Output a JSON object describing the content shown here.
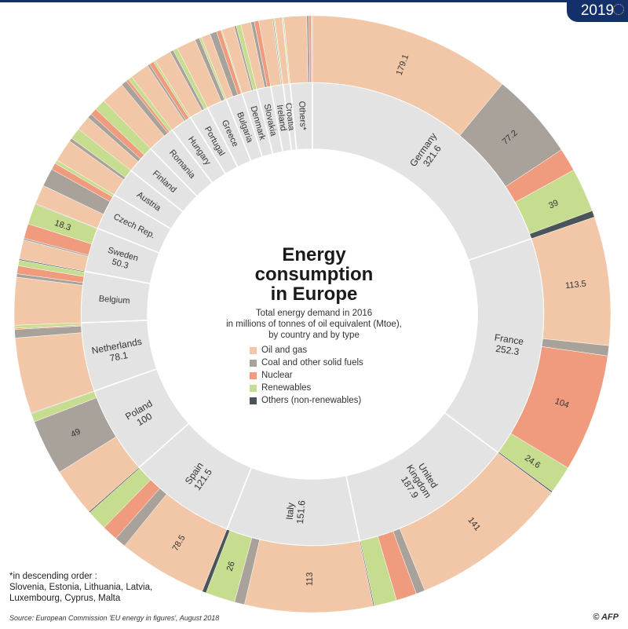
{
  "badge": {
    "year": "2019"
  },
  "title_lines": [
    "Energy",
    "consumption",
    "in Europe"
  ],
  "subtitle_lines": [
    "Total energy demand in 2016",
    "in millions of tonnes of oil equivalent (Mtoe),",
    "by country and by type"
  ],
  "legend": [
    {
      "label": "Oil and gas",
      "color": "#f2c7a8"
    },
    {
      "label": "Coal and other solid fuels",
      "color": "#a8a29b"
    },
    {
      "label": "Nuclear",
      "color": "#f19b7e"
    },
    {
      "label": "Renewables",
      "color": "#c6dc8f"
    },
    {
      "label": "Others (non-renewables)",
      "color": "#4b5458"
    }
  ],
  "footnote": {
    "lines": [
      "*in descending order :",
      "Slovenia, Estonia, Lithuania, Latvia,",
      "Luxembourg, Cyprus, Malta"
    ]
  },
  "source": "Source: European Commission 'EU energy in figures', August 2018",
  "credit": "© AFP",
  "chart_data": {
    "type": "donut",
    "title": "Energy consumption in Europe",
    "unit": "Mtoe",
    "categories": [
      "Oil and gas",
      "Coal and other solid fuels",
      "Nuclear",
      "Renewables",
      "Others (non-renewables)"
    ],
    "countries": [
      {
        "name": "Germany",
        "total": 321.6,
        "total_label": "321.6",
        "breakdown": [
          179.1,
          77.2,
          20.5,
          39,
          5.8
        ],
        "labels": [
          "179.1",
          "77.2",
          "",
          "39",
          ""
        ]
      },
      {
        "name": "France",
        "total": 252.3,
        "total_label": "252.3",
        "breakdown": [
          113.5,
          9,
          104,
          24.6,
          1.2
        ],
        "labels": [
          "113.5",
          "",
          "104",
          "24.6",
          ""
        ]
      },
      {
        "name": "United Kingdom",
        "name_lines": [
          "United",
          "Kingdom"
        ],
        "total": 187.9,
        "total_label": "187.9",
        "breakdown": [
          141,
          8,
          18,
          20,
          0.9
        ],
        "labels": [
          "141",
          "",
          "",
          "",
          ""
        ]
      },
      {
        "name": "Italy",
        "total": 151.6,
        "total_label": "151.6",
        "breakdown": [
          113,
          9,
          0,
          26,
          3.6
        ],
        "labels": [
          "113",
          "",
          "",
          "26",
          ""
        ]
      },
      {
        "name": "Spain",
        "total": 121.5,
        "total_label": "121.5",
        "breakdown": [
          78.5,
          10,
          14,
          18,
          1
        ],
        "labels": [
          "78.5",
          "",
          "",
          "",
          ""
        ]
      },
      {
        "name": "Poland",
        "total": 100,
        "total_label": "100",
        "breakdown": [
          43,
          49,
          0,
          7.5,
          0.5
        ],
        "labels": [
          "",
          "49",
          "",
          "",
          ""
        ]
      },
      {
        "name": "Netherlands",
        "total": 78.1,
        "total_label": "78.1",
        "breakdown": [
          67,
          7.5,
          1,
          2.6,
          0
        ],
        "labels": [
          "",
          "",
          "",
          "",
          ""
        ]
      },
      {
        "name": "Belgium",
        "total": 58,
        "total_label": "",
        "breakdown": [
          42,
          3,
          7,
          5,
          1
        ],
        "labels": [
          "",
          "",
          "",
          "",
          ""
        ]
      },
      {
        "name": "Sweden",
        "total": 50.3,
        "total_label": "50.3",
        "breakdown": [
          17,
          1.5,
          13,
          18.3,
          0.5
        ],
        "labels": [
          "",
          "",
          "",
          "18.3",
          ""
        ]
      },
      {
        "name": "Czech Rep.",
        "total": 42,
        "total_label": "",
        "breakdown": [
          17,
          16,
          6,
          3,
          0
        ],
        "labels": [
          "",
          "",
          "",
          "",
          ""
        ]
      },
      {
        "name": "Austria",
        "total": 33,
        "total_label": "",
        "breakdown": [
          20,
          3,
          0,
          10,
          0
        ],
        "labels": [
          "",
          "",
          "",
          "",
          ""
        ]
      },
      {
        "name": "Finland",
        "total": 33,
        "total_label": "",
        "breakdown": [
          13,
          4,
          6,
          10,
          0
        ],
        "labels": [
          "",
          "",
          "",
          "",
          ""
        ]
      },
      {
        "name": "Romania",
        "total": 32,
        "total_label": "",
        "breakdown": [
          21,
          5,
          2.5,
          3.5,
          0
        ],
        "labels": [
          "",
          "",
          "",
          "",
          ""
        ]
      },
      {
        "name": "Hungary",
        "total": 25,
        "total_label": "",
        "breakdown": [
          17,
          2,
          4,
          2,
          0
        ],
        "labels": [
          "",
          "",
          "",
          "",
          ""
        ]
      },
      {
        "name": "Portugal",
        "total": 22,
        "total_label": "",
        "breakdown": [
          15,
          3,
          0,
          4,
          0
        ],
        "labels": [
          "",
          "",
          "",
          "",
          ""
        ]
      },
      {
        "name": "Greece",
        "total": 23,
        "total_label": "",
        "breakdown": [
          17,
          4,
          0,
          2,
          0
        ],
        "labels": [
          "",
          "",
          "",
          "",
          ""
        ]
      },
      {
        "name": "Bulgaria",
        "total": 19,
        "total_label": "",
        "breakdown": [
          8,
          6,
          4,
          1,
          0
        ],
        "labels": [
          "",
          "",
          "",
          "",
          ""
        ]
      },
      {
        "name": "Denmark",
        "total": 17,
        "total_label": "",
        "breakdown": [
          11,
          2,
          0,
          4,
          0
        ],
        "labels": [
          "",
          "",
          "",
          "",
          ""
        ]
      },
      {
        "name": "Slovakia",
        "total": 16,
        "total_label": "",
        "breakdown": [
          9,
          3,
          4,
          0,
          0
        ],
        "labels": [
          "",
          "",
          "",
          "",
          ""
        ]
      },
      {
        "name": "Ireland",
        "total": 14,
        "total_label": "",
        "breakdown": [
          12,
          1,
          0,
          1,
          0
        ],
        "labels": [
          "",
          "",
          "",
          "",
          ""
        ]
      },
      {
        "name": "Croatia",
        "total": 8,
        "total_label": "",
        "breakdown": [
          6.5,
          0.5,
          0,
          1,
          0
        ],
        "labels": [
          "",
          "",
          "",
          "",
          ""
        ]
      },
      {
        "name": "Others*",
        "total": 25,
        "total_label": "",
        "breakdown": [
          20,
          2,
          2,
          1,
          0
        ],
        "labels": [
          "",
          "",
          "",
          "",
          ""
        ]
      }
    ]
  }
}
